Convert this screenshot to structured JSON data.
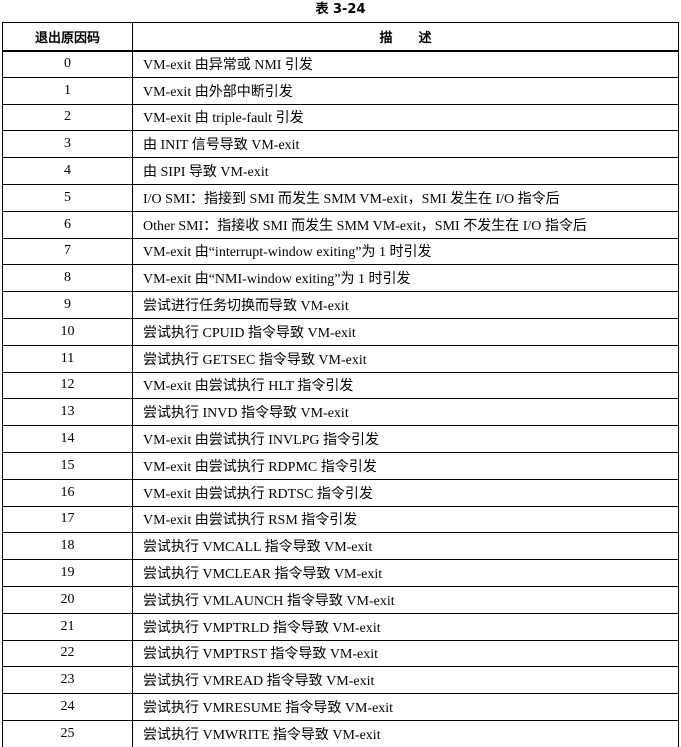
{
  "caption": "表 3-24",
  "table": {
    "headers": [
      "退出原因码",
      "描　　述"
    ],
    "rows": [
      {
        "code": "0",
        "description": "VM-exit 由异常或 NMI 引发"
      },
      {
        "code": "1",
        "description": "VM-exit 由外部中断引发"
      },
      {
        "code": "2",
        "description": "VM-exit 由 triple-fault 引发"
      },
      {
        "code": "3",
        "description": "由 INIT 信号导致 VM-exit"
      },
      {
        "code": "4",
        "description": "由 SIPI 导致 VM-exit"
      },
      {
        "code": "5",
        "description": "I/O SMI：指接到 SMI 而发生 SMM VM-exit，SMI 发生在 I/O 指令后"
      },
      {
        "code": "6",
        "description": "Other SMI：指接收 SMI 而发生 SMM VM-exit，SMI 不发生在 I/O 指令后"
      },
      {
        "code": "7",
        "description": "VM-exit 由“interrupt-window exiting”为 1 时引发"
      },
      {
        "code": "8",
        "description": "VM-exit 由“NMI-window exiting”为 1 时引发"
      },
      {
        "code": "9",
        "description": "尝试进行任务切换而导致 VM-exit"
      },
      {
        "code": "10",
        "description": "尝试执行 CPUID 指令导致 VM-exit"
      },
      {
        "code": "11",
        "description": "尝试执行 GETSEC 指令导致 VM-exit"
      },
      {
        "code": "12",
        "description": "VM-exit 由尝试执行 HLT 指令引发"
      },
      {
        "code": "13",
        "description": "尝试执行 INVD 指令导致 VM-exit"
      },
      {
        "code": "14",
        "description": "VM-exit 由尝试执行 INVLPG 指令引发"
      },
      {
        "code": "15",
        "description": "VM-exit 由尝试执行 RDPMC 指令引发"
      },
      {
        "code": "16",
        "description": "VM-exit 由尝试执行 RDTSC 指令引发"
      },
      {
        "code": "17",
        "description": "VM-exit 由尝试执行 RSM 指令引发"
      },
      {
        "code": "18",
        "description": "尝试执行 VMCALL 指令导致 VM-exit"
      },
      {
        "code": "19",
        "description": "尝试执行 VMCLEAR 指令导致 VM-exit"
      },
      {
        "code": "20",
        "description": "尝试执行 VMLAUNCH 指令导致 VM-exit"
      },
      {
        "code": "21",
        "description": "尝试执行 VMPTRLD 指令导致 VM-exit"
      },
      {
        "code": "22",
        "description": "尝试执行 VMPTRST 指令导致 VM-exit"
      },
      {
        "code": "23",
        "description": "尝试执行 VMREAD 指令导致 VM-exit"
      },
      {
        "code": "24",
        "description": "尝试执行 VMRESUME 指令导致 VM-exit"
      },
      {
        "code": "25",
        "description": "尝试执行 VMWRITE 指令导致 VM-exit"
      }
    ]
  }
}
